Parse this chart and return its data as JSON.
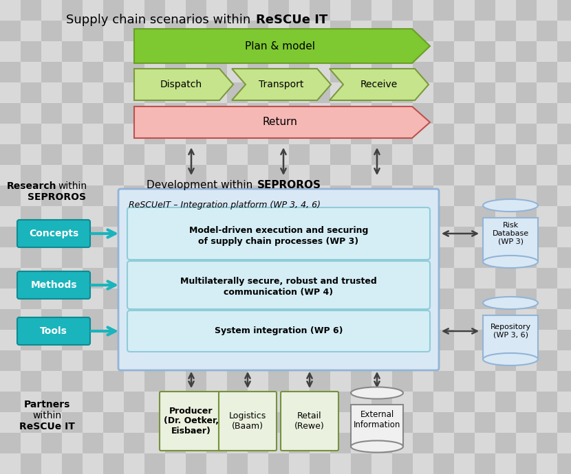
{
  "checker_light": "#d9d9d9",
  "checker_dark": "#c0c0c0",
  "green_dark_fill": "#7ec831",
  "green_dark_edge": "#6a9e28",
  "green_light_fill": "#c6e48c",
  "green_light_edge": "#7a9a3c",
  "red_fill": "#f6b8b5",
  "red_edge": "#be514e",
  "blue_box_fill": "#d9e8f5",
  "blue_box_edge": "#92b4d6",
  "inner_box_fill": "#d5eef5",
  "inner_box_edge": "#8fccd8",
  "teal_fill": "#1ab4bc",
  "teal_edge": "#0e8a90",
  "yellow_green_fill": "#eaf1de",
  "yellow_green_edge": "#76923c",
  "cyl_fill": "#d9e8f5",
  "cyl_edge": "#92b4d6",
  "ext_cyl_fill": "#f0f0f0",
  "ext_cyl_edge": "#888888",
  "title_normal": "Supply chain scenarios within ",
  "title_bold": "ReSCUe IT",
  "dev_normal": "Development within ",
  "dev_bold": "SEPROROS",
  "research_bold": "Research",
  "research_normal": " within",
  "research_line2": "SEPROROS",
  "integration_label": "ReSCUeIT – Integration platform (WP 3, 4, 6)",
  "wp3_line1": "Model-driven execution and securing",
  "wp3_line2": "of supply chain processes (WP 3)",
  "wp4_line1": "Multilaterally secure, robust and trusted",
  "wp4_line2": "communication (WP 4)",
  "wp6_label": "System integration (WP 6)",
  "risk_db": "Risk\nDatabase\n(WP 3)",
  "repo": "Repository\n(WP 3, 6)",
  "producer": "Producer\n(Dr. Oetker,\nEisbaer)",
  "logistics": "Logistics\n(Baam)",
  "retail": "Retail\n(Rewe)",
  "ext_info": "External\nInformation",
  "partners_line1": "Partners",
  "partners_line2": "within",
  "partners_line3": "ReSCUe IT"
}
